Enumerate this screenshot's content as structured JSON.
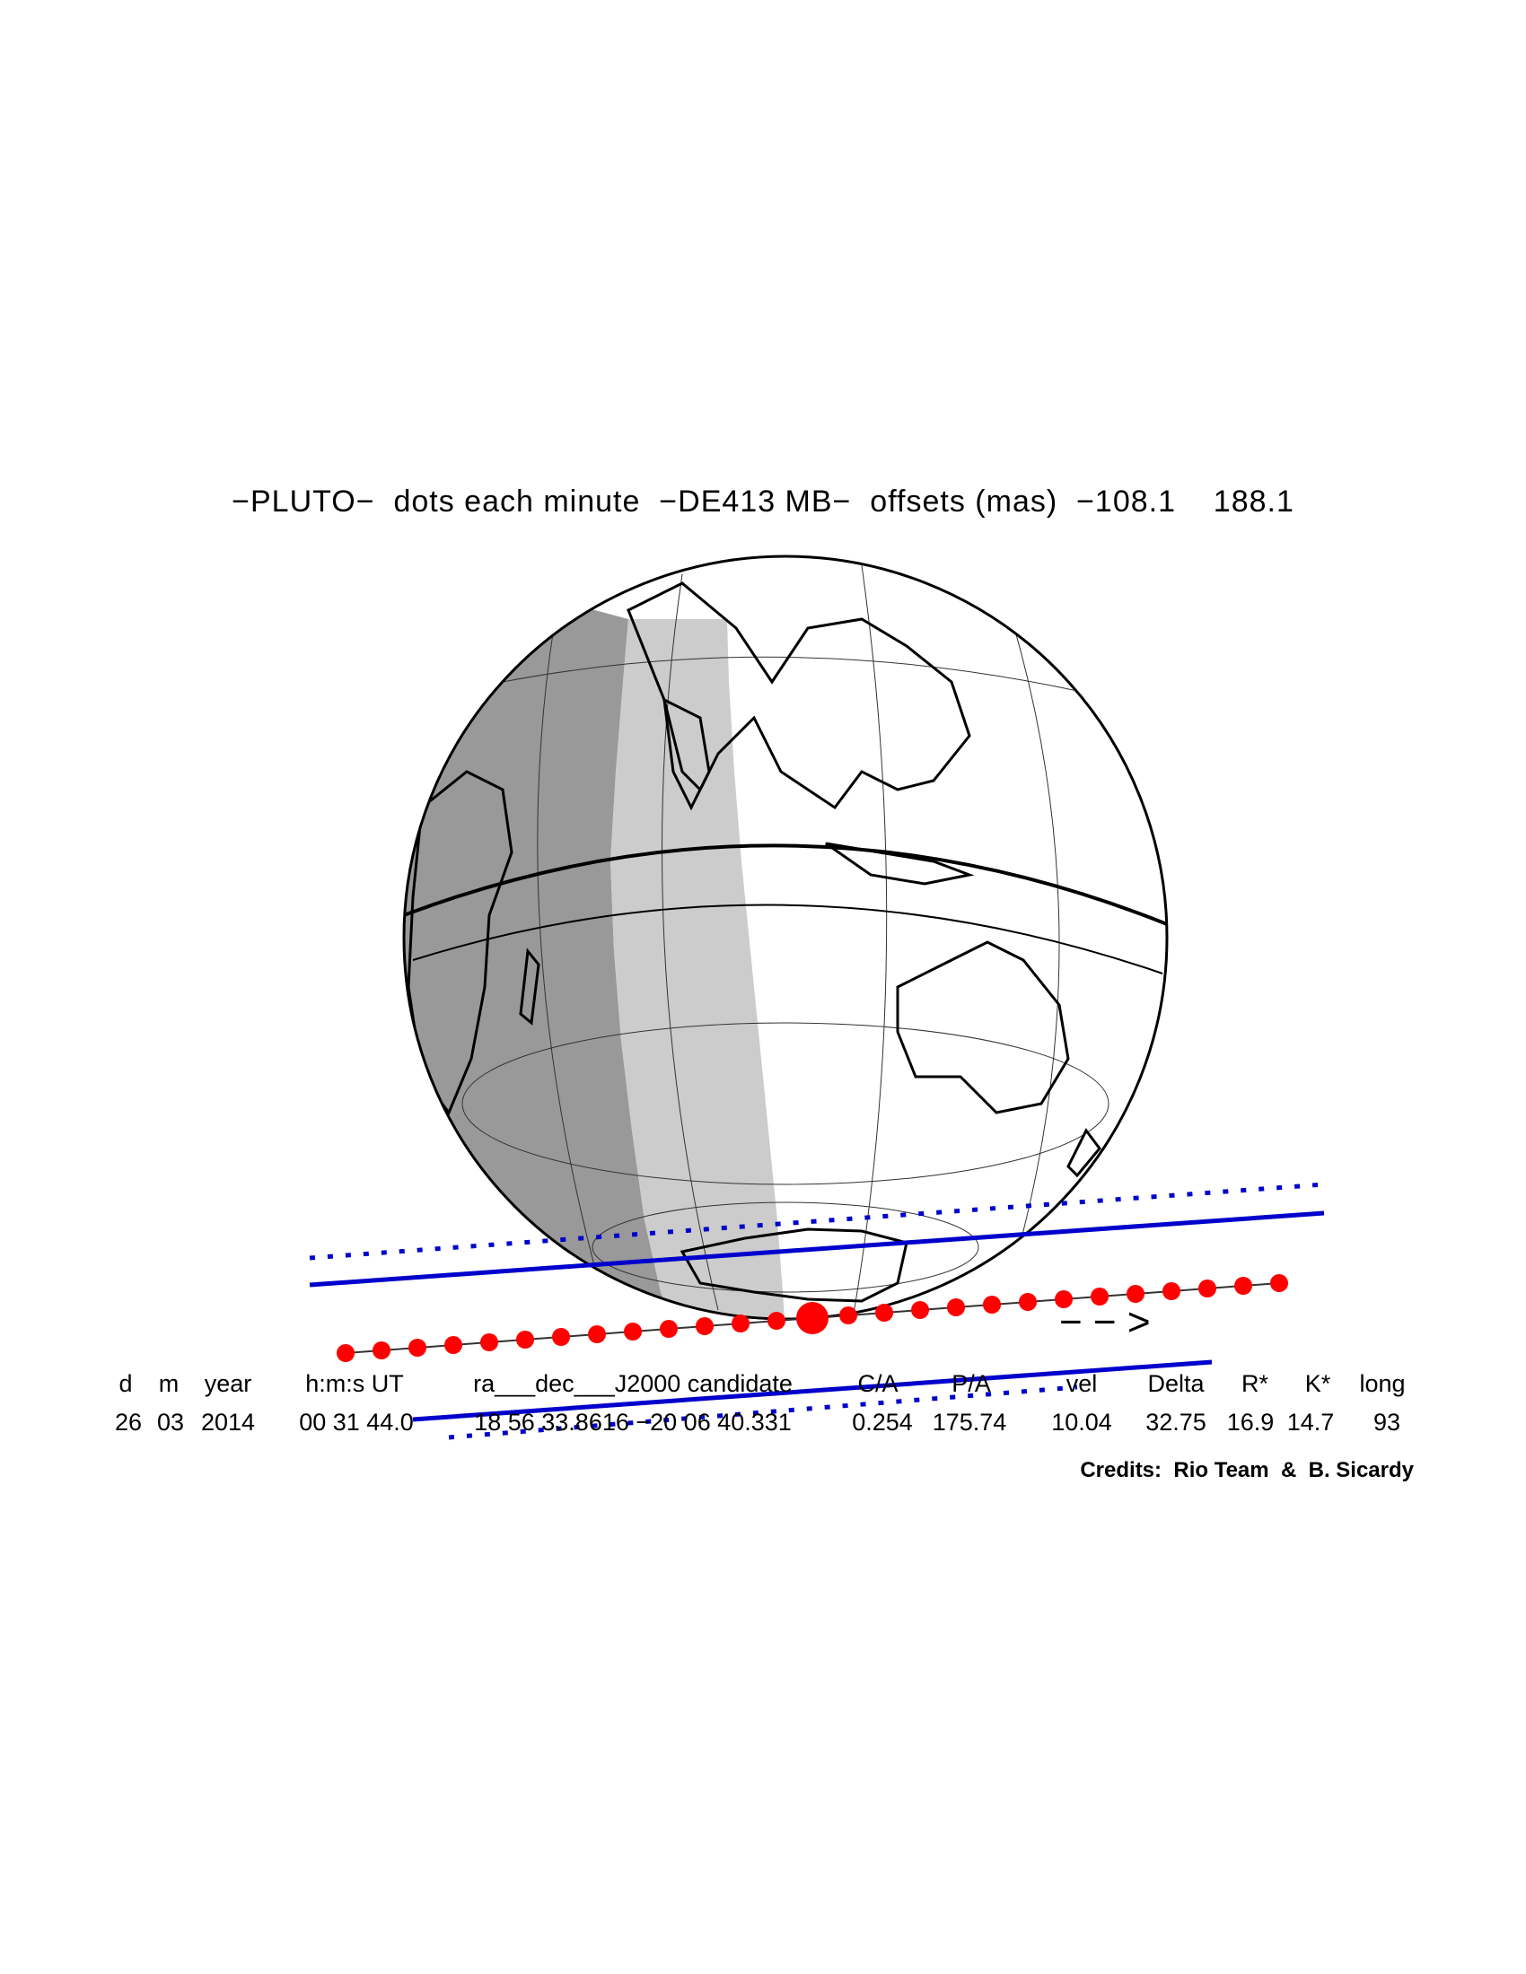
{
  "title": "−PLUTO−  dots each minute  −DE413 MB−  offsets (mas)  −108.1    188.1",
  "direction_arrow": "− − >",
  "table": {
    "headers": [
      "d",
      "m",
      "year",
      "h:m:s UT",
      "ra___dec___J2000 candidate",
      "C/A",
      "P/A",
      "vel",
      "Delta",
      "R*",
      "K*",
      "long"
    ],
    "values": [
      "26",
      "03",
      "2014",
      "00 31 44.0",
      "18 56 33.8616 −20 06 40.331",
      "0.254",
      "175.74",
      "10.04",
      "32.75",
      "16.9",
      "14.7",
      "93"
    ]
  },
  "credits": "Credits:  Rio Team  &  B. Sicardy",
  "colors": {
    "night": "#999999",
    "twilight": "#cccccc",
    "day": "#ffffff",
    "shadow_limit_line": "#0000cc",
    "path_dots": "#ff0000"
  },
  "chart_data": {
    "type": "occultation-map",
    "object": "PLUTO",
    "dot_interval": "each minute",
    "ephemeris": "DE413 MB",
    "offsets_mas": [
      -108.1,
      188.1
    ],
    "path_dot_count": 27,
    "closest_approach_dot_index": 13,
    "event": {
      "day": 26,
      "month": 3,
      "year": 2014,
      "time_ut": "00 31 44.0",
      "ra_j2000": "18 56 33.8616",
      "dec_j2000": "-20 06 40.331",
      "ca": 0.254,
      "pa": 175.74,
      "vel": 10.04,
      "delta": 32.75,
      "r_star": 16.9,
      "k_star": 14.7,
      "long": 93
    }
  }
}
